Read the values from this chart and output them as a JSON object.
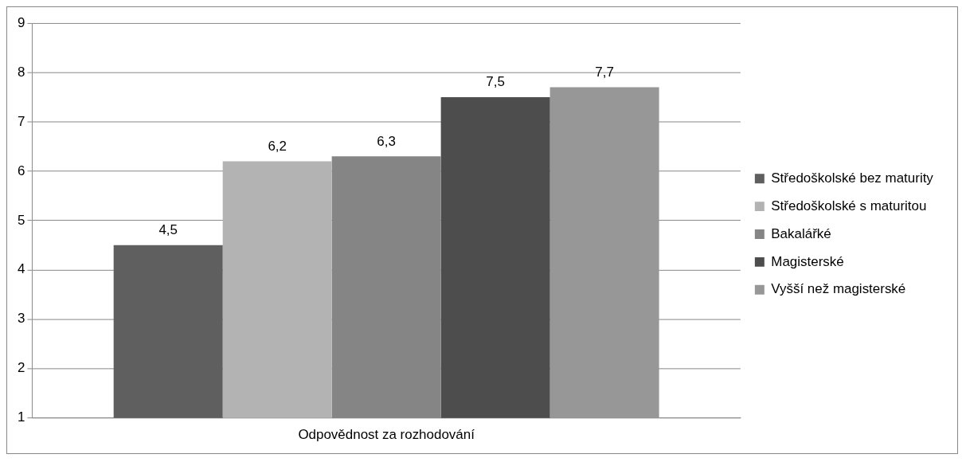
{
  "chart_data": {
    "type": "bar",
    "categories": [
      "Odpovědnost za rozhodování"
    ],
    "series": [
      {
        "name": "Středoškolské bez maturity",
        "color": "#5f5f5f",
        "values": [
          4.5
        ],
        "value_labels": [
          "4,5"
        ]
      },
      {
        "name": "Středoškolské s maturitou",
        "color": "#b3b3b3",
        "values": [
          6.2
        ],
        "value_labels": [
          "6,2"
        ]
      },
      {
        "name": "Bakalářké",
        "color": "#858585",
        "values": [
          6.3
        ],
        "value_labels": [
          "6,3"
        ]
      },
      {
        "name": "Magisterské",
        "color": "#4d4d4d",
        "values": [
          7.5
        ],
        "value_labels": [
          "7,5"
        ]
      },
      {
        "name": "Vyšší než magisterské",
        "color": "#979797",
        "values": [
          7.7
        ],
        "value_labels": [
          "7,7"
        ]
      }
    ],
    "ylim": [
      1,
      9
    ],
    "yticks": [
      1,
      2,
      3,
      4,
      5,
      6,
      7,
      8,
      9
    ],
    "grid": "y",
    "legend": "right"
  }
}
